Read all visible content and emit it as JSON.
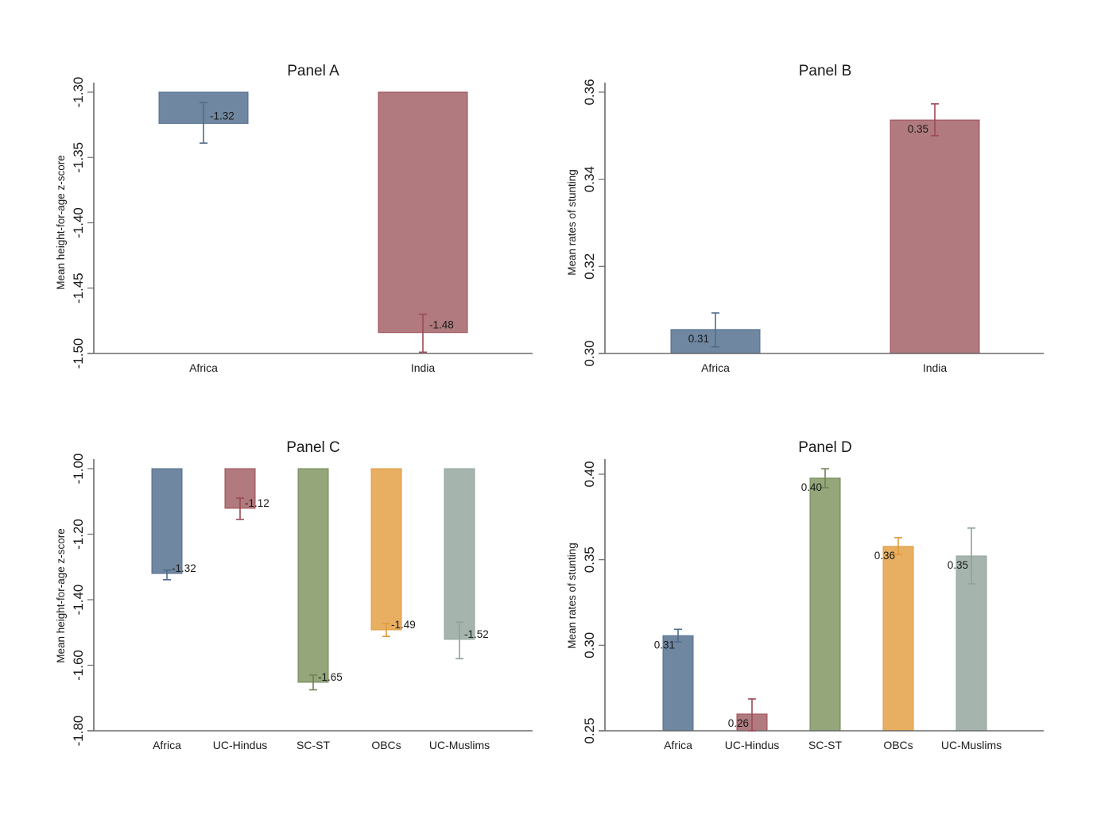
{
  "chart_data": [
    {
      "type": "bar",
      "id": "panel-a",
      "title": "Panel A",
      "xlabel": "",
      "ylabel": "Mean height-for-age z-score",
      "ylim": [
        -1.5,
        -1.3
      ],
      "yticks": [
        -1.3,
        -1.35,
        -1.4,
        -1.45,
        -1.5
      ],
      "ytick_labels": [
        "-1.30",
        "-1.35",
        "-1.40",
        "-1.45",
        "-1.50"
      ],
      "bar_base": -1.3,
      "grid": false,
      "categories": [
        "Africa",
        "India"
      ],
      "values": [
        -1.324,
        -1.484
      ],
      "ci_low": [
        -1.339,
        -1.499
      ],
      "ci_high": [
        -1.308,
        -1.47
      ],
      "data_labels": [
        "-1.32",
        "-1.48"
      ],
      "colors": [
        "#6f87a0",
        "#b07a7e"
      ]
    },
    {
      "type": "bar",
      "id": "panel-b",
      "title": "Panel B",
      "xlabel": "",
      "ylabel": "Mean rates of stunting",
      "ylim": [
        0.3,
        0.36
      ],
      "yticks": [
        0.3,
        0.32,
        0.34,
        0.36
      ],
      "ytick_labels": [
        "0.30",
        "0.32",
        "0.34",
        "0.36"
      ],
      "bar_base": 0.3,
      "grid": false,
      "categories": [
        "Africa",
        "India"
      ],
      "values": [
        0.3055,
        0.3536
      ],
      "ci_low": [
        0.3015,
        0.35
      ],
      "ci_high": [
        0.3093,
        0.3573
      ],
      "data_labels": [
        "0.31",
        "0.35"
      ],
      "colors": [
        "#6f87a0",
        "#b07a7e"
      ]
    },
    {
      "type": "bar",
      "id": "panel-c",
      "title": "Panel C",
      "xlabel": "",
      "ylabel": "Mean height-for-age z-score",
      "ylim": [
        -1.8,
        -1.0
      ],
      "yticks": [
        -1.0,
        -1.2,
        -1.4,
        -1.6,
        -1.8
      ],
      "ytick_labels": [
        "-1.00",
        "-1.20",
        "-1.40",
        "-1.60",
        "-1.80"
      ],
      "bar_base": -1.0,
      "grid": false,
      "categories": [
        "Africa",
        "UC-Hindus",
        "SC-ST",
        "OBCs",
        "UC-Muslims"
      ],
      "values": [
        -1.32,
        -1.121,
        -1.652,
        -1.492,
        -1.521
      ],
      "ci_low": [
        -1.339,
        -1.155,
        -1.675,
        -1.512,
        -1.58
      ],
      "ci_high": [
        -1.31,
        -1.09,
        -1.63,
        -1.473,
        -1.468
      ],
      "data_labels": [
        "-1.32",
        "-1.12",
        "-1.65",
        "-1.49",
        "-1.52"
      ],
      "colors": [
        "#6f87a0",
        "#b07a7e",
        "#94a67a",
        "#e8af62",
        "#a5b5ad"
      ]
    },
    {
      "type": "bar",
      "id": "panel-d",
      "title": "Panel D",
      "xlabel": "",
      "ylabel": "Mean rates of stunting",
      "ylim": [
        0.25,
        0.4
      ],
      "yticks": [
        0.25,
        0.3,
        0.35,
        0.4
      ],
      "ytick_labels": [
        "0.25",
        "0.30",
        "0.35",
        "0.40"
      ],
      "bar_base": 0.25,
      "grid": false,
      "categories": [
        "Africa",
        "UC-Hindus",
        "SC-ST",
        "OBCs",
        "UC-Muslims"
      ],
      "values": [
        0.3056,
        0.2598,
        0.3977,
        0.3578,
        0.3522
      ],
      "ci_low": [
        0.3019,
        0.25,
        0.3921,
        0.3531,
        0.3359
      ],
      "ci_high": [
        0.3093,
        0.2686,
        0.4032,
        0.3629,
        0.3685
      ],
      "data_labels": [
        "0.31",
        "0.26",
        "0.40",
        "0.36",
        "0.35"
      ],
      "colors": [
        "#6f87a0",
        "#b07a7e",
        "#94a67a",
        "#e8af62",
        "#a5b5ad"
      ]
    }
  ],
  "palette": {
    "Africa": {
      "fill": "#6f87a0",
      "stroke": "#4f6c8e"
    },
    "India": {
      "fill": "#b07a7e",
      "stroke": "#9b4a52"
    },
    "UC-Hindus": {
      "fill": "#b07a7e",
      "stroke": "#9b4a52"
    },
    "SC-ST": {
      "fill": "#94a67a",
      "stroke": "#6b8450"
    },
    "OBCs": {
      "fill": "#e8af62",
      "stroke": "#e09a3a"
    },
    "UC-Muslims": {
      "fill": "#a5b5ad",
      "stroke": "#8da297"
    }
  }
}
